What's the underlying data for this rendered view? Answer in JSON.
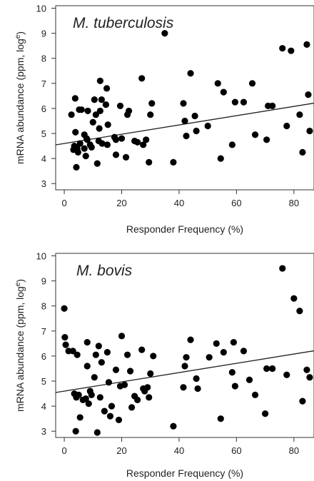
{
  "chart_data": [
    {
      "type": "scatter",
      "title": "M. tuberculosis",
      "xlabel": "Responder Frequency (%)",
      "ylabel": "mRNA abundance  (ppm, log",
      "ylabel_sup": "e",
      "ylabel_close": ")",
      "xlim": [
        -3,
        87
      ],
      "ylim": [
        2.75,
        10.1
      ],
      "xticks": [
        0,
        20,
        40,
        60,
        80
      ],
      "yticks": [
        3,
        4,
        5,
        6,
        7,
        8,
        9,
        10
      ],
      "grid": false,
      "trend_line": {
        "intercept": 4.6,
        "slope": 0.0185
      },
      "series": [
        {
          "marker": "filled-circle",
          "color": "#000000",
          "x": [
            2.5,
            3.2,
            3.5,
            3.8,
            3.9,
            4.2,
            4.5,
            4.8,
            5.2,
            5.5,
            6.0,
            7.0,
            7.0,
            7.5,
            7.8,
            8.0,
            8.2,
            9.0,
            9.5,
            10.0,
            10.5,
            11.0,
            11.5,
            12.0,
            12.2,
            12.5,
            12.5,
            13.0,
            13.2,
            14.5,
            14.8,
            15.0,
            15.2,
            17.5,
            18.0,
            18.0,
            19.5,
            20.0,
            21.5,
            22.0,
            22.5,
            24.5,
            25.5,
            27.0,
            27.5,
            28.5,
            29.5,
            30.0,
            30.5,
            35.0,
            38.0,
            41.5,
            42.0,
            42.5,
            44.0,
            45.5,
            46.0,
            50.0,
            53.5,
            54.5,
            55.5,
            58.5,
            59.5,
            62.5,
            65.5,
            66.5,
            70.5,
            71.0,
            72.5,
            76.0,
            77.5,
            79.0,
            82.0,
            83.0,
            84.5,
            85.0,
            85.5
          ],
          "y": [
            5.75,
            4.35,
            4.5,
            6.4,
            5.05,
            3.65,
            4.4,
            4.25,
            5.95,
            4.6,
            5.95,
            4.4,
            4.95,
            4.1,
            4.8,
            4.75,
            5.9,
            4.55,
            4.45,
            5.45,
            6.35,
            5.75,
            3.8,
            4.7,
            5.2,
            5.9,
            7.1,
            6.35,
            4.6,
            6.15,
            6.8,
            4.55,
            5.35,
            4.85,
            4.75,
            4.15,
            6.1,
            4.8,
            4.05,
            5.75,
            5.9,
            4.7,
            4.65,
            7.2,
            4.55,
            4.75,
            3.85,
            5.75,
            6.2,
            9.0,
            3.85,
            6.2,
            5.5,
            4.9,
            7.4,
            5.7,
            5.1,
            5.3,
            7.0,
            4.0,
            6.65,
            4.55,
            6.25,
            6.25,
            7.0,
            4.95,
            4.75,
            6.1,
            6.1,
            8.4,
            5.3,
            8.3,
            5.75,
            4.25,
            8.55,
            6.55,
            5.1
          ]
        }
      ]
    },
    {
      "type": "scatter",
      "title": "M. bovis",
      "xlabel": "Responder Frequency (%)",
      "ylabel": "mRNA abundance  (ppm, log",
      "ylabel_sup": "e",
      "ylabel_close": ")",
      "xlim": [
        -3,
        87
      ],
      "ylim": [
        2.75,
        10.1
      ],
      "xticks": [
        0,
        20,
        40,
        60,
        80
      ],
      "yticks": [
        3,
        4,
        5,
        6,
        7,
        8,
        9,
        10
      ],
      "grid": false,
      "trend_line": {
        "intercept": 4.6,
        "slope": 0.0185
      },
      "series": [
        {
          "marker": "filled-circle",
          "color": "#000000",
          "x": [
            0.0,
            0.2,
            0.5,
            1.5,
            3.0,
            3.5,
            4.0,
            4.2,
            4.5,
            5.0,
            5.5,
            6.5,
            7.5,
            8.0,
            8.0,
            8.5,
            9.0,
            9.5,
            10.5,
            11.0,
            11.5,
            12.0,
            12.5,
            13.0,
            14.0,
            15.0,
            15.5,
            16.0,
            16.5,
            18.0,
            19.0,
            19.5,
            20.0,
            21.0,
            22.0,
            23.0,
            23.5,
            24.5,
            25.5,
            27.0,
            27.5,
            28.0,
            29.0,
            29.5,
            30.0,
            31.0,
            38.0,
            41.5,
            42.0,
            42.5,
            44.0,
            46.0,
            46.5,
            50.5,
            53.0,
            54.5,
            55.5,
            58.5,
            59.0,
            59.5,
            62.5,
            64.5,
            66.5,
            70.0,
            70.5,
            72.5,
            76.0,
            77.5,
            80.0,
            82.0,
            83.0,
            84.5,
            85.5
          ],
          "y": [
            7.9,
            6.75,
            6.45,
            6.2,
            6.2,
            4.5,
            3.0,
            4.35,
            6.05,
            4.45,
            3.55,
            4.25,
            4.3,
            5.6,
            6.55,
            4.1,
            4.6,
            4.45,
            5.15,
            6.05,
            2.95,
            6.4,
            4.35,
            5.75,
            3.8,
            6.15,
            4.95,
            3.6,
            4.0,
            5.45,
            3.45,
            4.8,
            6.8,
            4.85,
            6.05,
            5.4,
            3.95,
            4.4,
            4.25,
            6.25,
            4.7,
            4.6,
            4.75,
            4.35,
            5.3,
            6.0,
            3.2,
            4.75,
            5.6,
            5.95,
            6.65,
            5.1,
            4.7,
            5.95,
            6.5,
            3.5,
            6.15,
            5.35,
            6.55,
            4.8,
            6.2,
            5.05,
            4.45,
            3.7,
            5.5,
            5.5,
            9.5,
            5.25,
            8.3,
            7.8,
            4.2,
            5.45,
            5.15
          ]
        }
      ]
    }
  ]
}
